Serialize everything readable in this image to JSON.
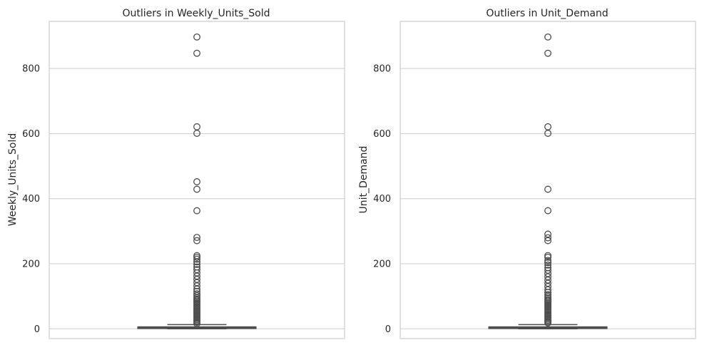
{
  "chart_data": [
    {
      "type": "box",
      "title": "Outliers in Weekly_Units_Sold",
      "xlabel": "",
      "ylabel": "Weekly_Units_Sold",
      "ylim": [
        -30,
        945
      ],
      "yticks": [
        0,
        200,
        400,
        600,
        800
      ],
      "grid": true,
      "box": {
        "q1": 1,
        "median": 3,
        "q3": 6,
        "whisker_low": 0,
        "whisker_high": 13
      },
      "outliers": [
        897,
        847,
        621,
        601,
        452,
        429,
        363,
        281,
        271,
        225,
        220,
        214,
        206,
        198,
        190,
        182,
        172,
        162,
        152,
        142,
        132,
        122,
        115,
        108,
        102,
        96,
        92,
        88,
        84,
        80,
        76,
        72,
        68,
        64,
        60,
        56,
        52,
        48,
        44,
        40,
        36,
        32,
        28,
        24,
        20,
        16
      ]
    },
    {
      "type": "box",
      "title": "Outliers in Unit_Demand",
      "xlabel": "",
      "ylabel": "Unit_Demand",
      "ylim": [
        -30,
        945
      ],
      "yticks": [
        0,
        200,
        400,
        600,
        800
      ],
      "grid": true,
      "box": {
        "q1": 1,
        "median": 3,
        "q3": 6,
        "whisker_low": 0,
        "whisker_high": 13
      },
      "outliers": [
        897,
        847,
        621,
        601,
        429,
        363,
        291,
        280,
        271,
        225,
        220,
        210,
        204,
        196,
        188,
        180,
        170,
        160,
        150,
        140,
        130,
        120,
        112,
        105,
        100,
        95,
        90,
        86,
        82,
        78,
        74,
        70,
        66,
        62,
        58,
        54,
        50,
        46,
        42,
        38,
        34,
        30,
        26,
        22,
        18
      ]
    }
  ],
  "style": {
    "box_color": "#4d4d4d",
    "grid_color": "#cccccc",
    "frame_color": "#cccccc"
  }
}
